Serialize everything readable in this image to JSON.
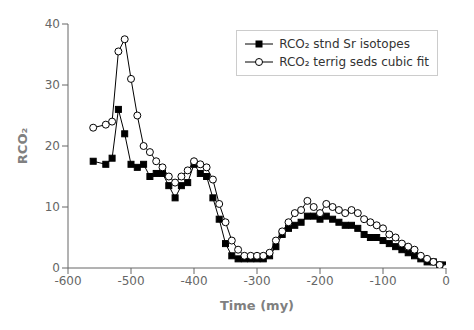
{
  "chart_data": {
    "type": "line",
    "xlabel": "Time  (my)",
    "ylabel": "RCO₂",
    "x": [
      -560,
      -540,
      -530,
      -520,
      -510,
      -500,
      -490,
      -480,
      -470,
      -460,
      -450,
      -440,
      -430,
      -420,
      -410,
      -400,
      -390,
      -380,
      -370,
      -360,
      -350,
      -340,
      -330,
      -320,
      -310,
      -300,
      -290,
      -280,
      -270,
      -260,
      -250,
      -240,
      -230,
      -220,
      -210,
      -200,
      -190,
      -180,
      -170,
      -160,
      -150,
      -140,
      -130,
      -120,
      -110,
      -100,
      -90,
      -80,
      -70,
      -60,
      -50,
      -40,
      -30,
      -20,
      -10,
      0
    ],
    "series": [
      {
        "name": "RCO₂ stnd Sr isotopes",
        "color": "#000000",
        "marker": "square",
        "values": [
          17.5,
          17.0,
          18.0,
          26.0,
          22.0,
          17.0,
          16.5,
          17.0,
          15.0,
          15.5,
          15.5,
          13.5,
          11.5,
          13.5,
          14.0,
          17.0,
          15.5,
          15.0,
          11.5,
          8.0,
          4.0,
          2.0,
          1.5,
          1.5,
          1.5,
          1.5,
          1.5,
          2.0,
          3.5,
          5.5,
          6.5,
          7.0,
          7.5,
          8.5,
          8.5,
          8.0,
          8.5,
          8.0,
          7.5,
          7.0,
          7.0,
          6.5,
          5.5,
          5.0,
          5.0,
          4.5,
          4.0,
          3.5,
          3.0,
          2.5,
          2.0,
          1.5,
          1.0,
          1.0,
          0.5,
          0.5
        ]
      },
      {
        "name": "RCO₂ terrig seds cubic fit",
        "color": "#000000",
        "marker": "open_circle",
        "values": [
          23.0,
          23.5,
          24.0,
          35.5,
          37.5,
          31.0,
          25.0,
          20.0,
          19.0,
          17.5,
          16.5,
          15.0,
          14.0,
          15.0,
          16.0,
          17.5,
          17.0,
          16.5,
          14.5,
          10.5,
          7.5,
          4.5,
          3.0,
          2.0,
          2.0,
          2.0,
          2.0,
          2.5,
          4.5,
          6.0,
          7.5,
          9.0,
          9.5,
          11.0,
          10.0,
          9.0,
          10.5,
          10.0,
          9.5,
          9.0,
          9.5,
          9.0,
          8.0,
          7.5,
          7.0,
          6.5,
          5.5,
          5.0,
          4.0,
          3.5,
          3.0,
          2.0,
          1.5,
          1.0,
          0.5,
          0.0
        ]
      }
    ],
    "xlim": [
      -600,
      0
    ],
    "ylim": [
      0,
      40
    ],
    "xticks": [
      -600,
      -500,
      -400,
      -300,
      -200,
      -100,
      0
    ],
    "yticks": [
      0,
      10,
      20,
      30,
      40
    ],
    "legend": "upper right",
    "grid": false
  }
}
